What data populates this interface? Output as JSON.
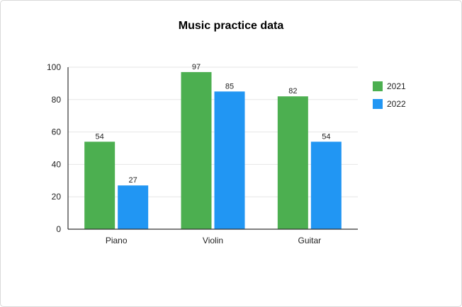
{
  "chart_data": {
    "type": "bar",
    "title": "Music practice data",
    "xlabel": "",
    "ylabel": "",
    "categories": [
      "Piano",
      "Violin",
      "Guitar"
    ],
    "series": [
      {
        "name": "2021",
        "color": "#4caf50",
        "values": [
          54,
          97,
          82
        ]
      },
      {
        "name": "2022",
        "color": "#2196f3",
        "values": [
          27,
          85,
          54
        ]
      }
    ],
    "ylim": [
      0,
      100
    ],
    "yticks": [
      "0",
      "20",
      "40",
      "60",
      "80",
      "100"
    ],
    "grid": true,
    "legend_position": "right",
    "data_labels": true
  }
}
